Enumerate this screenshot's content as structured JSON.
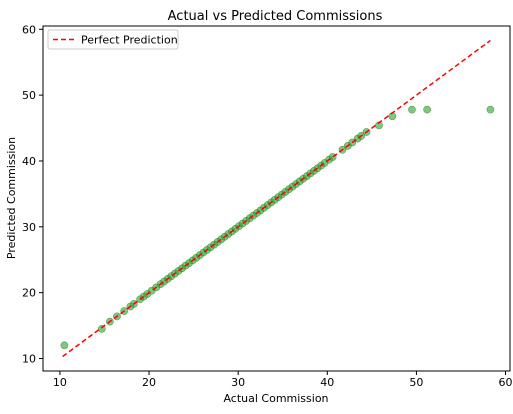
{
  "chart_data": {
    "type": "scatter",
    "title": "Actual vs Predicted Commissions",
    "xlabel": "Actual Commission",
    "ylabel": "Predicted Commission",
    "xlim": [
      8.1,
      60.5
    ],
    "ylim": [
      8.1,
      60.5
    ],
    "xticks": [
      10,
      20,
      30,
      40,
      50,
      60
    ],
    "yticks": [
      10,
      20,
      30,
      40,
      50,
      60
    ],
    "grid": false,
    "legend_position": "top-left",
    "series": [
      {
        "name": "Perfect Prediction",
        "kind": "line",
        "style": "dashed",
        "color": "#ff0000",
        "x": [
          10.3,
          58.3
        ],
        "y": [
          10.3,
          58.3
        ]
      },
      {
        "kind": "scatter",
        "color": "#2ca02c",
        "edge_color": "#1f7a1f",
        "opacity": 0.6,
        "points": [
          [
            10.5,
            12.0
          ],
          [
            14.7,
            14.5
          ],
          [
            15.6,
            15.6
          ],
          [
            16.4,
            16.4
          ],
          [
            17.2,
            17.2
          ],
          [
            17.9,
            17.9
          ],
          [
            18.3,
            18.3
          ],
          [
            19.0,
            19.0
          ],
          [
            19.4,
            19.4
          ],
          [
            19.8,
            19.8
          ],
          [
            20.3,
            20.3
          ],
          [
            20.8,
            20.8
          ],
          [
            21.3,
            21.3
          ],
          [
            21.7,
            21.7
          ],
          [
            22.1,
            22.1
          ],
          [
            22.5,
            22.5
          ],
          [
            22.9,
            22.9
          ],
          [
            23.3,
            23.3
          ],
          [
            23.7,
            23.7
          ],
          [
            24.1,
            24.1
          ],
          [
            24.5,
            24.5
          ],
          [
            24.9,
            24.9
          ],
          [
            25.3,
            25.3
          ],
          [
            25.7,
            25.7
          ],
          [
            26.1,
            26.1
          ],
          [
            26.5,
            26.5
          ],
          [
            26.9,
            26.9
          ],
          [
            27.3,
            27.3
          ],
          [
            27.7,
            27.7
          ],
          [
            28.1,
            28.1
          ],
          [
            28.5,
            28.5
          ],
          [
            28.9,
            28.9
          ],
          [
            29.3,
            29.3
          ],
          [
            29.7,
            29.7
          ],
          [
            30.1,
            30.1
          ],
          [
            30.5,
            30.5
          ],
          [
            30.9,
            30.9
          ],
          [
            31.3,
            31.3
          ],
          [
            31.7,
            31.7
          ],
          [
            32.1,
            32.1
          ],
          [
            32.5,
            32.5
          ],
          [
            32.9,
            32.9
          ],
          [
            33.3,
            33.3
          ],
          [
            33.7,
            33.7
          ],
          [
            34.1,
            34.1
          ],
          [
            34.5,
            34.5
          ],
          [
            34.9,
            34.9
          ],
          [
            35.3,
            35.3
          ],
          [
            35.7,
            35.7
          ],
          [
            36.1,
            36.1
          ],
          [
            36.5,
            36.5
          ],
          [
            36.9,
            36.9
          ],
          [
            37.3,
            37.3
          ],
          [
            37.7,
            37.7
          ],
          [
            38.1,
            38.1
          ],
          [
            38.5,
            38.5
          ],
          [
            38.9,
            38.9
          ],
          [
            39.3,
            39.3
          ],
          [
            39.7,
            39.7
          ],
          [
            40.2,
            40.2
          ],
          [
            40.6,
            40.6
          ],
          [
            41.7,
            41.7
          ],
          [
            42.3,
            42.3
          ],
          [
            42.8,
            42.8
          ],
          [
            43.4,
            43.4
          ],
          [
            43.8,
            43.8
          ],
          [
            44.4,
            44.4
          ],
          [
            45.8,
            45.4
          ],
          [
            47.3,
            46.8
          ],
          [
            49.5,
            47.8
          ],
          [
            51.2,
            47.8
          ],
          [
            58.3,
            47.8
          ]
        ]
      }
    ]
  }
}
